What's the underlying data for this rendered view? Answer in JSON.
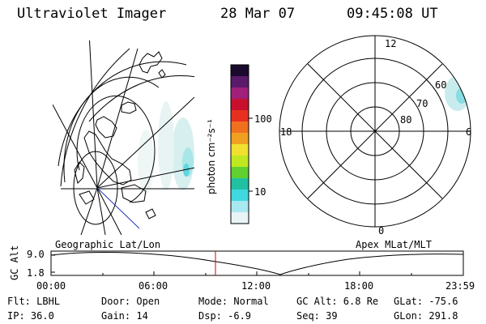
{
  "header": {
    "instrument": "Ultraviolet Imager",
    "date": "28 Mar 07",
    "time": "09:45:08 UT"
  },
  "colorbar": {
    "unit_label": "photon cm⁻²s⁻¹",
    "ticks": [
      "100",
      "10"
    ],
    "colors": [
      "#1a0b2e",
      "#5a1a6a",
      "#a0207a",
      "#c8102e",
      "#e83020",
      "#f07020",
      "#f0a020",
      "#f0e030",
      "#c0e820",
      "#60d030",
      "#20c0a0",
      "#40d8e0",
      "#a8e8f0",
      "#e8f4f6"
    ]
  },
  "geo_panel": {
    "caption": "Geographic Lat/Lon"
  },
  "polar_panel": {
    "caption": "Apex MLat/MLT",
    "mlt_labels": [
      "12",
      "18",
      "6",
      "0"
    ],
    "lat_labels": [
      "60",
      "70",
      "80"
    ]
  },
  "timeline": {
    "y_axis_label": "GC Alt",
    "y_ticks": [
      "9.0",
      "1.8"
    ],
    "x_ticks": [
      "00:00",
      "06:00",
      "12:00",
      "18:00",
      "23:59"
    ],
    "marker_time": "09:45",
    "marker_color": "#cc0000"
  },
  "status": {
    "filter": "Flt: LBHL",
    "ip": "IP: 36.0",
    "door": "Door: Open",
    "gain": "Gain: 14",
    "mode": "Mode: Normal",
    "dsp": "Dsp:   -6.9",
    "gc_alt": "GC Alt: 6.8 Re",
    "seq": "Seq: 39",
    "glat": "GLat: -75.6",
    "glon": "GLon: 291.8"
  }
}
